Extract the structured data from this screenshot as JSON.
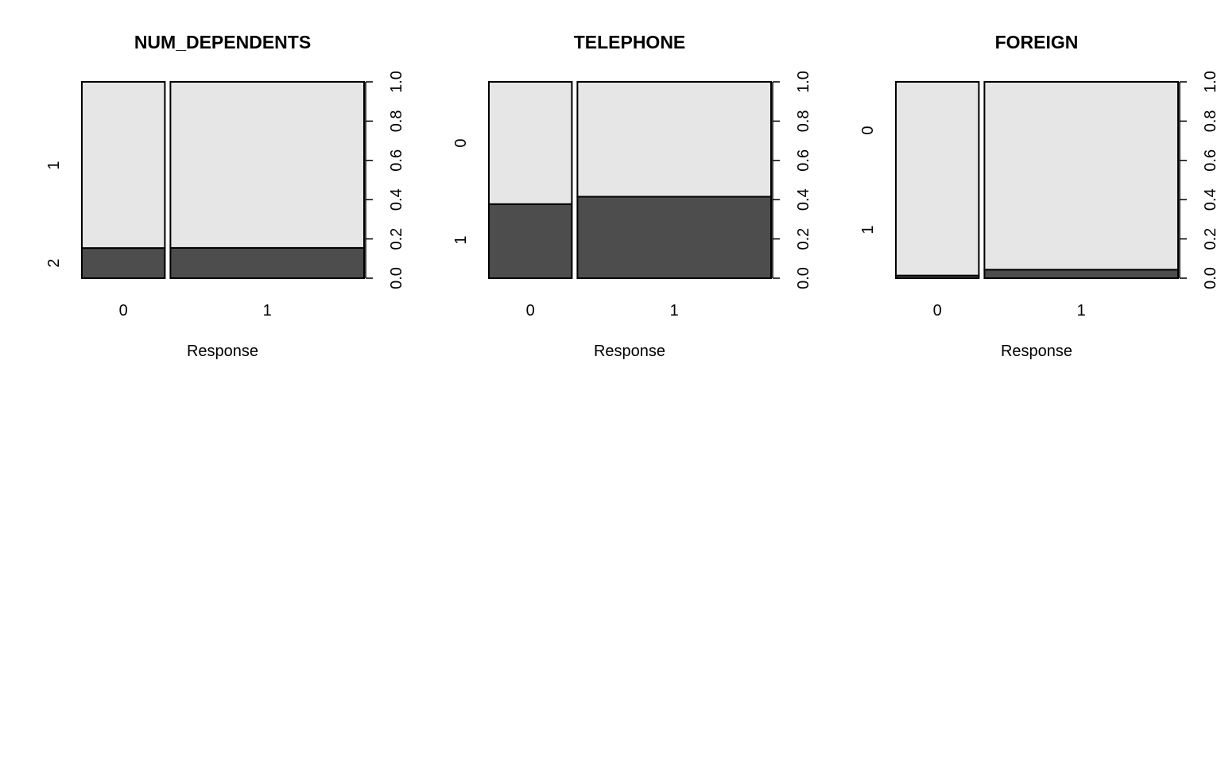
{
  "colors": {
    "light": "#e6e6e6",
    "dark": "#4d4d4d",
    "stroke": "#000000",
    "background": "#ffffff"
  },
  "chart_data": [
    {
      "type": "spineplot",
      "title": "NUM_DEPENDENTS",
      "xlabel": "Response",
      "x_categories": [
        "0",
        "1"
      ],
      "x_widths": [
        0.3,
        0.7
      ],
      "y_categories_bottom_to_top": [
        "2",
        "1"
      ],
      "y_levels_shown": [
        "2",
        "1"
      ],
      "proportions_bottom_level": [
        0.153,
        0.154
      ],
      "right_axis_ticks": [
        "0.0",
        "0.2",
        "0.4",
        "0.6",
        "0.8",
        "1.0"
      ],
      "ylim": [
        0,
        1
      ]
    },
    {
      "type": "spineplot",
      "title": "TELEPHONE",
      "xlabel": "Response",
      "x_categories": [
        "0",
        "1"
      ],
      "x_widths": [
        0.3,
        0.7
      ],
      "y_categories_bottom_to_top": [
        "1",
        "0"
      ],
      "y_levels_shown": [
        "1",
        "0"
      ],
      "proportions_bottom_level": [
        0.377,
        0.415
      ],
      "right_axis_ticks": [
        "0.0",
        "0.2",
        "0.4",
        "0.6",
        "0.8",
        "1.0"
      ],
      "ylim": [
        0,
        1
      ]
    },
    {
      "type": "spineplot",
      "title": "FOREIGN",
      "xlabel": "Response",
      "x_categories": [
        "0",
        "1"
      ],
      "x_widths": [
        0.3,
        0.7
      ],
      "y_categories_bottom_to_top": [
        "1",
        "0"
      ],
      "y_levels_shown": [
        "1",
        "0"
      ],
      "proportions_bottom_level": [
        0.013,
        0.043
      ],
      "right_axis_ticks": [
        "0.0",
        "0.2",
        "0.4",
        "0.6",
        "0.8",
        "1.0"
      ],
      "ylim": [
        0,
        1
      ]
    }
  ]
}
